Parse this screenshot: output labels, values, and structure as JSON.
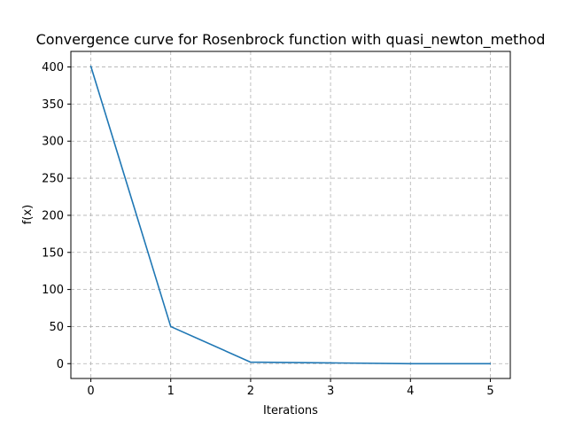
{
  "chart_data": {
    "type": "line",
    "title": "Convergence curve for Rosenbrock function with quasi_newton_method",
    "xlabel": "Iterations",
    "ylabel": "f(x)",
    "x": [
      0,
      1,
      2,
      3,
      4,
      5
    ],
    "series": [
      {
        "values": [
          401,
          50,
          2,
          1,
          0,
          0
        ],
        "color": "#1f77b4"
      }
    ],
    "xlim": [
      -0.25,
      5.25
    ],
    "ylim": [
      -20,
      421
    ],
    "xticks": [
      0,
      1,
      2,
      3,
      4,
      5
    ],
    "yticks": [
      0,
      50,
      100,
      150,
      200,
      250,
      300,
      350,
      400
    ],
    "grid": true,
    "grid_style": "dashed",
    "legend": "none"
  }
}
